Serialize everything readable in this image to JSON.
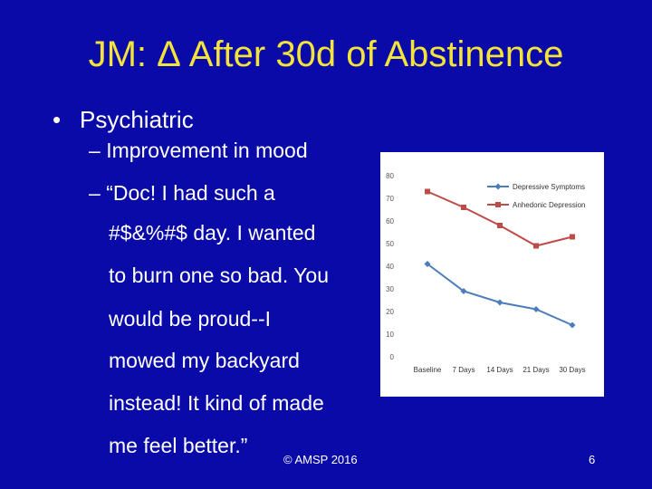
{
  "slide": {
    "title": "JM: Δ After 30d of Abstinence",
    "bullet_symbol": "•",
    "bullet": "Psychiatric",
    "sub_dash": "–",
    "sub1": "Improvement in mood",
    "quote_lines": [
      "“Doc! I had such a",
      "#$&%#$ day. I wanted",
      "to burn one so bad. You",
      "would be proud--I",
      "mowed my backyard",
      "instead! It kind of made",
      "me feel better.”"
    ],
    "copyright": "© AMSP 2016",
    "page_number": "6"
  },
  "chart_data": {
    "type": "line",
    "categories": [
      "Baseline",
      "7 Days",
      "14 Days",
      "21 Days",
      "30 Days"
    ],
    "series": [
      {
        "name": "Depressive Symptoms",
        "values": [
          41,
          29,
          24,
          21,
          14
        ],
        "color": "#4a7ebb",
        "marker": "diamond"
      },
      {
        "name": "Anhedonic Depression",
        "values": [
          73,
          66,
          58,
          49,
          53
        ],
        "color": "#be4b48",
        "marker": "square"
      }
    ],
    "yticks": [
      0,
      10,
      20,
      30,
      40,
      50,
      60,
      70,
      80
    ],
    "ylim": [
      0,
      80
    ],
    "grid": false,
    "legend": "top-right"
  }
}
